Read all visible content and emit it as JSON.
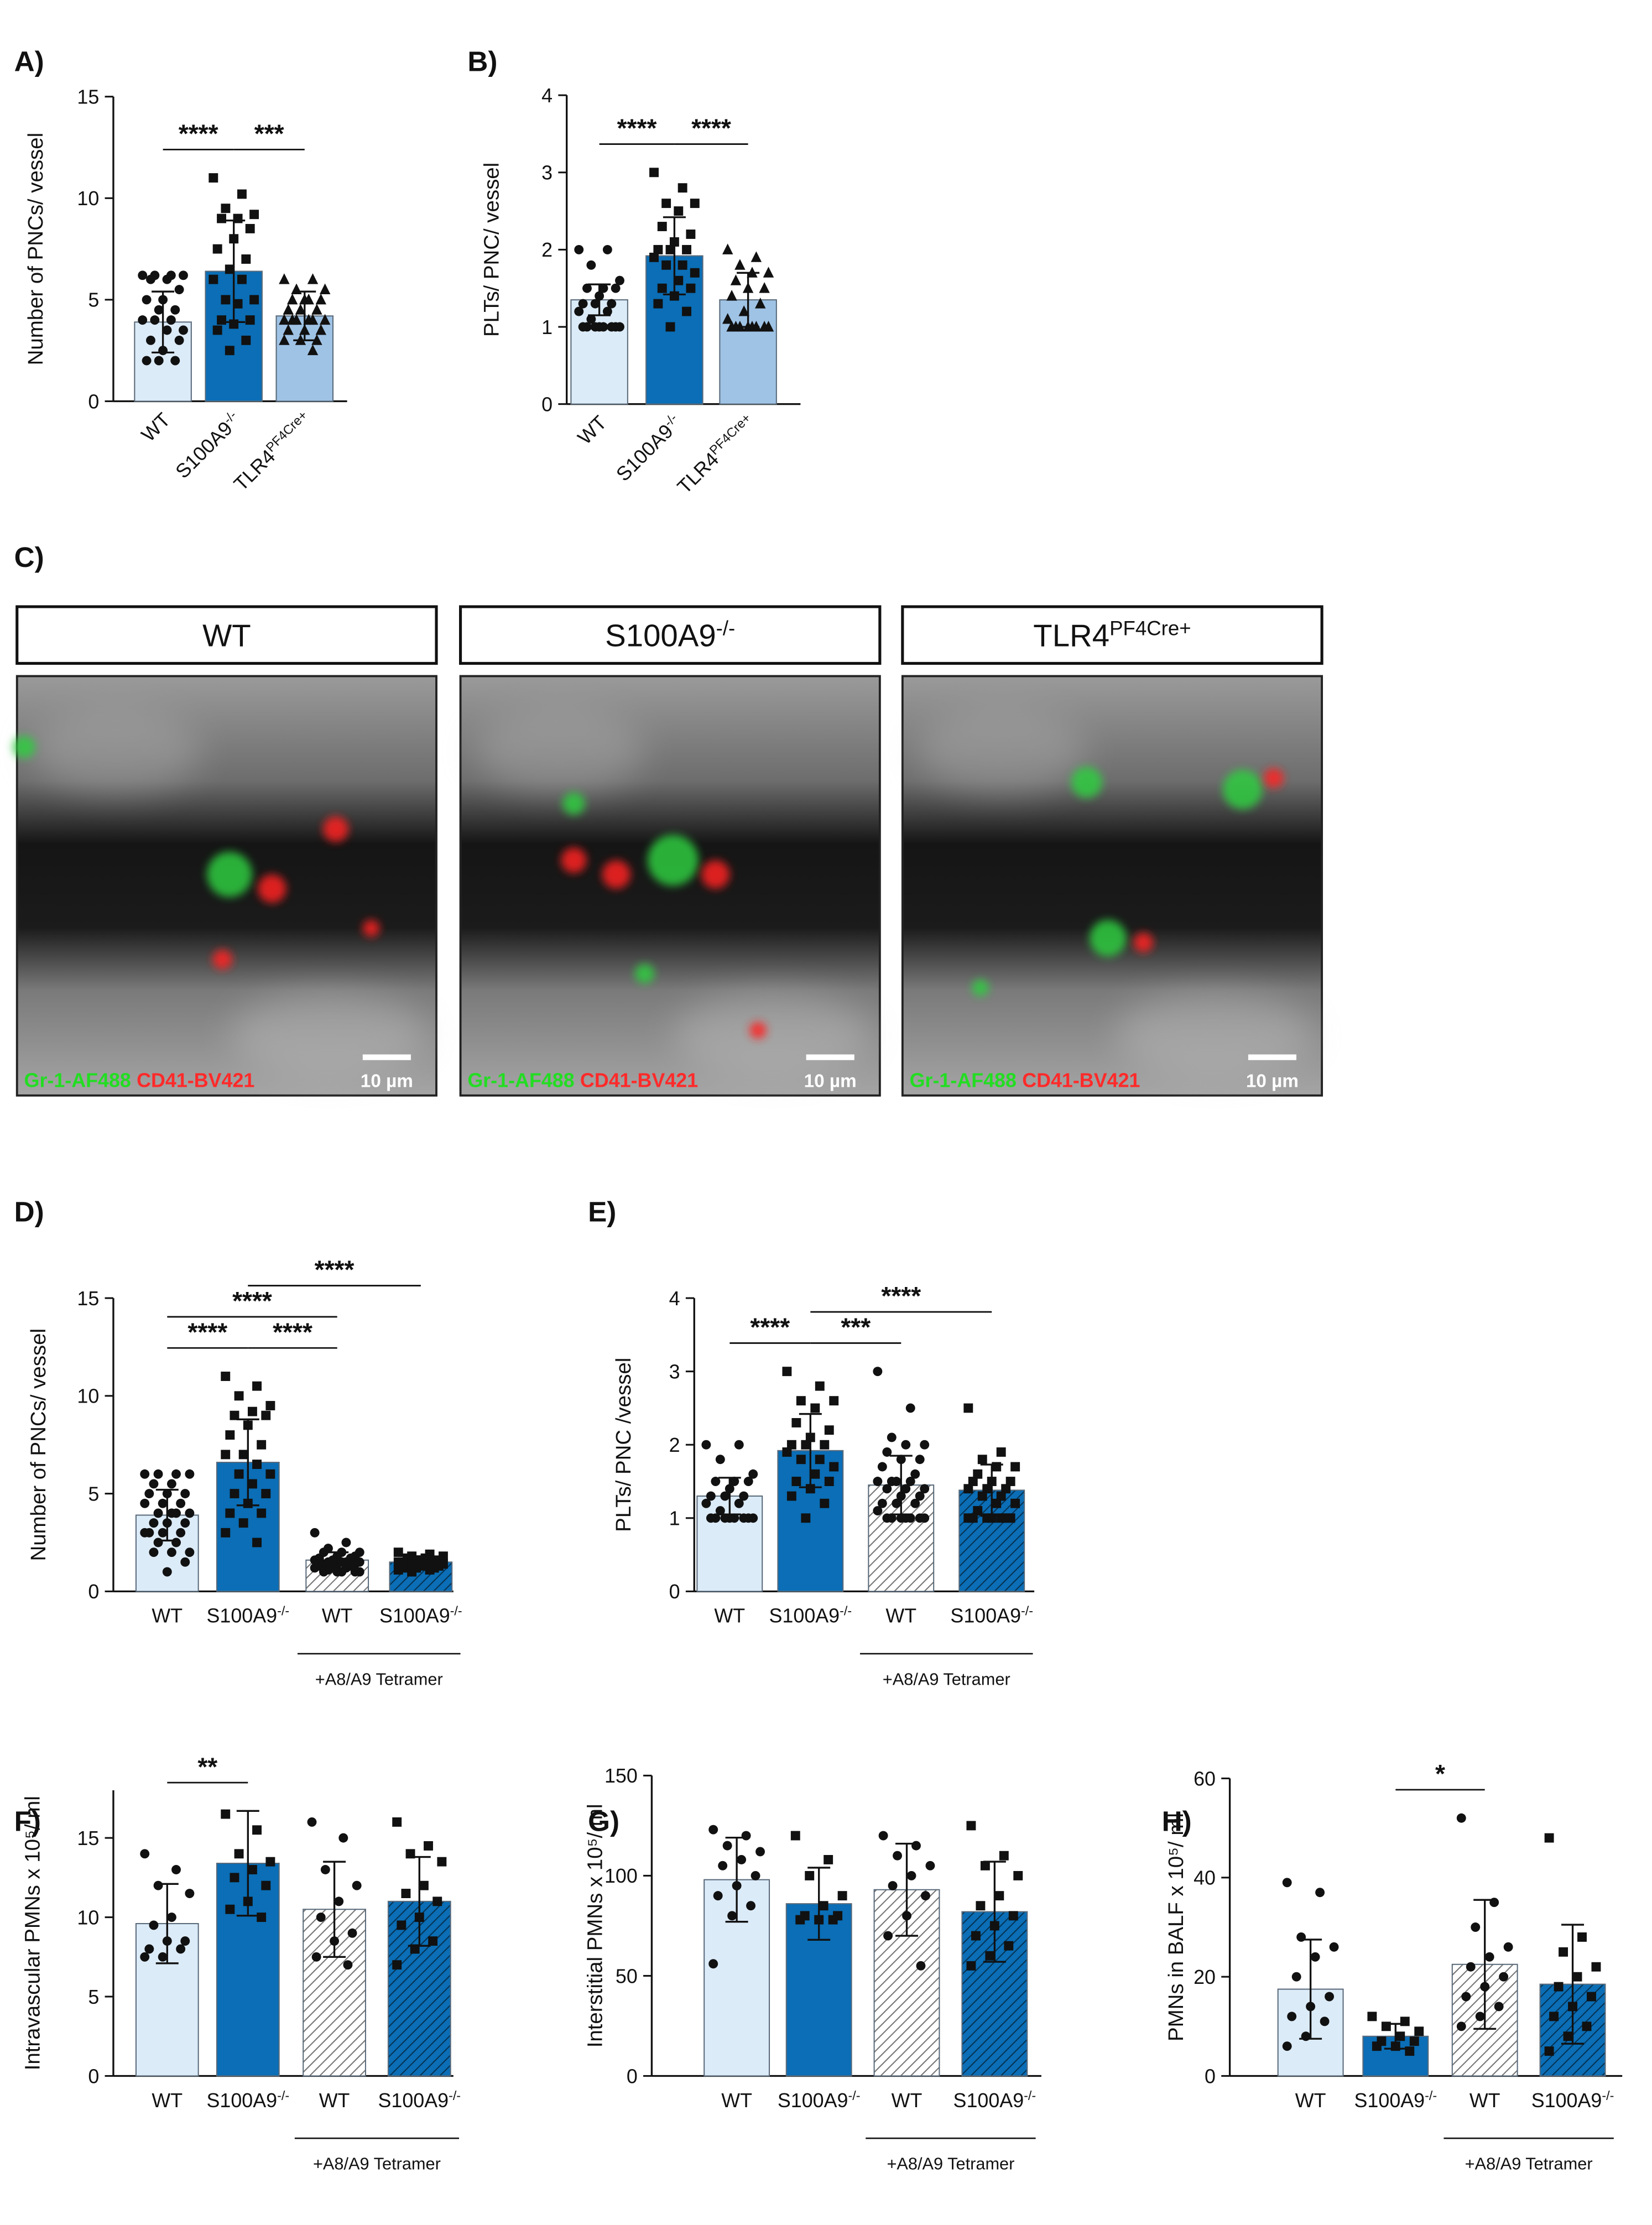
{
  "chart_data": [
    {
      "type": "bar",
      "panel": "A)",
      "ylabel": "Number of PNCs/ vessel",
      "categories": [
        "WT",
        {
          "base": "S100A9",
          "sup": "-/-"
        },
        {
          "base": "TLR4",
          "sup": "PF4Cre+"
        }
      ],
      "values": [
        3.9,
        6.4,
        4.2
      ],
      "errors": [
        1.5,
        2.5,
        1.2
      ],
      "points": [
        [
          6.2,
          6.2,
          6.2,
          6.2,
          6,
          6,
          5.5,
          5,
          5,
          4.5,
          4.5,
          4,
          4,
          4,
          3.5,
          3.5,
          3,
          3,
          2.5,
          2,
          2,
          2
        ],
        [
          11,
          10.2,
          9.5,
          9.2,
          9,
          9,
          8.5,
          8,
          7.5,
          7,
          6.5,
          6,
          6,
          5,
          5,
          4.8,
          4,
          4,
          3.8,
          3.5,
          3,
          2.5
        ],
        [
          6,
          6,
          5.5,
          5.5,
          5,
          5,
          5,
          5,
          4.5,
          4.5,
          4.5,
          4,
          4,
          4,
          4,
          4,
          4,
          3.5,
          3.5,
          3.5,
          3,
          3,
          3,
          2.5
        ]
      ],
      "colors": [
        "#dcebf8",
        "#0b6eb6",
        "#9fc3e5"
      ],
      "hatch": [
        false,
        false,
        false
      ],
      "markers": [
        "circle",
        "square",
        "triangle"
      ],
      "rotate_labels": true,
      "ylim": [
        0,
        15
      ],
      "yticks": [
        0,
        5,
        10,
        15
      ],
      "significance": [
        {
          "pair": [
            0,
            1
          ],
          "label": "****"
        },
        {
          "pair": [
            1,
            2
          ],
          "label": "***"
        }
      ]
    },
    {
      "type": "bar",
      "panel": "B)",
      "ylabel": "PLTs/ PNC/ vessel",
      "categories": [
        "WT",
        {
          "base": "S100A9",
          "sup": "-/-"
        },
        {
          "base": "TLR4",
          "sup": "PF4Cre+"
        }
      ],
      "values": [
        1.35,
        1.92,
        1.35
      ],
      "errors": [
        0.2,
        0.5,
        0.35
      ],
      "points": [
        [
          2,
          2,
          1.8,
          1.6,
          1.5,
          1.5,
          1.5,
          1.4,
          1.3,
          1.3,
          1.3,
          1.2,
          1.2,
          1.1,
          1,
          1,
          1,
          1,
          1,
          1,
          1,
          1
        ],
        [
          3,
          2.8,
          2.6,
          2.6,
          2.5,
          2.3,
          2.2,
          2.1,
          2,
          2,
          2,
          1.9,
          1.8,
          1.8,
          1.7,
          1.6,
          1.5,
          1.5,
          1.4,
          1.3,
          1.2,
          1
        ],
        [
          2,
          1.9,
          1.8,
          1.7,
          1.7,
          1.6,
          1.5,
          1.5,
          1.4,
          1.3,
          1.2,
          1.1,
          1,
          1,
          1,
          1,
          1,
          1,
          1,
          1
        ]
      ],
      "colors": [
        "#dcebf8",
        "#0b6eb6",
        "#9fc3e5"
      ],
      "hatch": [
        false,
        false,
        false
      ],
      "markers": [
        "circle",
        "square",
        "triangle"
      ],
      "rotate_labels": true,
      "ylim": [
        0,
        4
      ],
      "yticks": [
        0,
        1,
        2,
        3,
        4
      ],
      "significance": [
        {
          "pair": [
            0,
            1
          ],
          "label": "****"
        },
        {
          "pair": [
            1,
            2
          ],
          "label": "****"
        }
      ]
    },
    {
      "type": "bar",
      "panel": "D)",
      "ylabel": "Number of PNCs/ vessel",
      "categories": [
        "WT",
        {
          "base": "S100A9",
          "sup": "-/-"
        },
        "WT",
        {
          "base": "S100A9",
          "sup": "-/-"
        }
      ],
      "group_label": "+A8/A9 Tetramer",
      "values": [
        3.9,
        6.6,
        1.6,
        1.5
      ],
      "errors": [
        1.3,
        2.2,
        0.4,
        0.3
      ],
      "points": [
        [
          6,
          6,
          6,
          6,
          5.5,
          5.5,
          5,
          5,
          5,
          4.5,
          4.5,
          4.5,
          4,
          4,
          4,
          4,
          3.5,
          3.5,
          3.5,
          3,
          3,
          3,
          3,
          2.5,
          2.5,
          2,
          2,
          2,
          1.5,
          1
        ],
        [
          11,
          10.5,
          10,
          9.5,
          9.2,
          9,
          9,
          8.5,
          8,
          7.5,
          7,
          7,
          6.5,
          6,
          6,
          5.5,
          5,
          5,
          4.5,
          4,
          4,
          3.5,
          3,
          2.5
        ],
        [
          3,
          2.5,
          2.2,
          2,
          2,
          2,
          1.8,
          1.8,
          1.7,
          1.7,
          1.6,
          1.6,
          1.5,
          1.5,
          1.5,
          1.5,
          1.4,
          1.4,
          1.4,
          1.3,
          1.3,
          1.2,
          1.2,
          1.2,
          1.1,
          1,
          1,
          1,
          1,
          1
        ],
        [
          2,
          1.9,
          1.8,
          1.8,
          1.7,
          1.7,
          1.6,
          1.6,
          1.5,
          1.5,
          1.5,
          1.5,
          1.5,
          1.4,
          1.4,
          1.4,
          1.3,
          1.3,
          1.3,
          1.2,
          1.2,
          1.2,
          1.1,
          1.1,
          1
        ]
      ],
      "colors": [
        "#dcebf8",
        "#0b6eb6",
        "#ffffff",
        "#0b6eb6"
      ],
      "hatch": [
        false,
        false,
        true,
        true
      ],
      "markers": [
        "circle",
        "square",
        "circle",
        "square"
      ],
      "rotate_labels": false,
      "ylim": [
        0,
        15
      ],
      "yticks": [
        0,
        5,
        10,
        15
      ],
      "significance": [
        {
          "pair": [
            0,
            1
          ],
          "label": "****"
        },
        {
          "pair": [
            1,
            2
          ],
          "label": "****"
        },
        {
          "pair": [
            0,
            2
          ],
          "label": "****"
        },
        {
          "pair": [
            1,
            3
          ],
          "label": "****"
        }
      ]
    },
    {
      "type": "bar",
      "panel": "E)",
      "ylabel": "PLTs/ PNC /vessel",
      "categories": [
        "WT",
        {
          "base": "S100A9",
          "sup": "-/-"
        },
        "WT",
        {
          "base": "S100A9",
          "sup": "-/-"
        }
      ],
      "group_label": "+A8/A9 Tetramer",
      "values": [
        1.3,
        1.92,
        1.45,
        1.38
      ],
      "errors": [
        0.25,
        0.5,
        0.4,
        0.35
      ],
      "points": [
        [
          2,
          2,
          1.8,
          1.6,
          1.5,
          1.5,
          1.5,
          1.4,
          1.3,
          1.3,
          1.3,
          1.2,
          1.2,
          1.1,
          1,
          1,
          1,
          1,
          1,
          1,
          1,
          1
        ],
        [
          3,
          2.8,
          2.6,
          2.6,
          2.5,
          2.3,
          2.2,
          2.1,
          2,
          2,
          2,
          1.9,
          1.8,
          1.8,
          1.7,
          1.6,
          1.5,
          1.5,
          1.4,
          1.3,
          1.2,
          1
        ],
        [
          3,
          2.5,
          2.1,
          2,
          2,
          1.9,
          1.8,
          1.8,
          1.7,
          1.6,
          1.5,
          1.5,
          1.5,
          1.5,
          1.4,
          1.4,
          1.4,
          1.3,
          1.3,
          1.2,
          1.2,
          1.2,
          1.1,
          1,
          1,
          1,
          1,
          1,
          1,
          1
        ],
        [
          2.5,
          1.9,
          1.8,
          1.7,
          1.7,
          1.6,
          1.5,
          1.5,
          1.5,
          1.4,
          1.4,
          1.4,
          1.3,
          1.3,
          1.2,
          1.2,
          1.1,
          1,
          1,
          1,
          1,
          1,
          1,
          1
        ]
      ],
      "colors": [
        "#dcebf8",
        "#0b6eb6",
        "#ffffff",
        "#0b6eb6"
      ],
      "hatch": [
        false,
        false,
        true,
        true
      ],
      "markers": [
        "circle",
        "square",
        "circle",
        "square"
      ],
      "rotate_labels": false,
      "ylim": [
        0,
        4
      ],
      "yticks": [
        0,
        1,
        2,
        3,
        4
      ],
      "significance": [
        {
          "pair": [
            0,
            1
          ],
          "label": "****"
        },
        {
          "pair": [
            1,
            2
          ],
          "label": "***"
        },
        {
          "pair": [
            1,
            3
          ],
          "label": "****"
        }
      ]
    },
    {
      "type": "bar",
      "panel": "F)",
      "ylabel": "Intravascular PMNs x 10⁵/ ml",
      "categories": [
        "WT",
        {
          "base": "S100A9",
          "sup": "-/-"
        },
        "WT",
        {
          "base": "S100A9",
          "sup": "-/-"
        }
      ],
      "group_label": "+A8/A9 Tetramer",
      "values": [
        9.6,
        13.4,
        10.5,
        11
      ],
      "errors": [
        2.5,
        3.3,
        3,
        2.8
      ],
      "points": [
        [
          14,
          13,
          12,
          11.5,
          10,
          9.5,
          8.5,
          8.5,
          8,
          8,
          7.5,
          7.5
        ],
        [
          16.5,
          15.5,
          14,
          13.5,
          13,
          12.5,
          12,
          11,
          10.5,
          10
        ],
        [
          16,
          15,
          13,
          12,
          11,
          10,
          9,
          8.5,
          7.5,
          7
        ],
        [
          16,
          14.5,
          14,
          13.5,
          12,
          11.5,
          11,
          10,
          9.5,
          8.5,
          8,
          7
        ]
      ],
      "colors": [
        "#dcebf8",
        "#0b6eb6",
        "#ffffff",
        "#0b6eb6"
      ],
      "hatch": [
        false,
        false,
        true,
        true
      ],
      "markers": [
        "circle",
        "square",
        "circle",
        "square"
      ],
      "rotate_labels": false,
      "ylim": [
        0,
        18
      ],
      "yticks": [
        0,
        5,
        10,
        15
      ],
      "significance": [
        {
          "pair": [
            0,
            1
          ],
          "label": "**"
        }
      ]
    },
    {
      "type": "bar",
      "panel": "G)",
      "ylabel": "Interstitial PMNs x 10⁵/ ml",
      "categories": [
        "WT",
        {
          "base": "S100A9",
          "sup": "-/-"
        },
        "WT",
        {
          "base": "S100A9",
          "sup": "-/-"
        }
      ],
      "group_label": "+A8/A9 Tetramer",
      "values": [
        98,
        86,
        93,
        82
      ],
      "errors": [
        21,
        18,
        23,
        25
      ],
      "points": [
        [
          123,
          120,
          115,
          112,
          108,
          105,
          100,
          95,
          90,
          85,
          80,
          56
        ],
        [
          120,
          108,
          100,
          90,
          85,
          80,
          80,
          78,
          78,
          78
        ],
        [
          120,
          115,
          110,
          105,
          100,
          95,
          90,
          80,
          70,
          55
        ],
        [
          125,
          110,
          105,
          100,
          90,
          85,
          80,
          75,
          70,
          65,
          60,
          55
        ]
      ],
      "colors": [
        "#dcebf8",
        "#0b6eb6",
        "#ffffff",
        "#0b6eb6"
      ],
      "hatch": [
        false,
        false,
        true,
        true
      ],
      "markers": [
        "circle",
        "square",
        "circle",
        "square"
      ],
      "rotate_labels": false,
      "ylim": [
        0,
        150
      ],
      "yticks": [
        0,
        50,
        100,
        150
      ],
      "significance": []
    },
    {
      "type": "bar",
      "panel": "H)",
      "ylabel": "PMNs in BALF x 10⁵/ ml",
      "categories": [
        "WT",
        {
          "base": "S100A9",
          "sup": "-/-"
        },
        "WT",
        {
          "base": "S100A9",
          "sup": "-/-"
        }
      ],
      "group_label": "+A8/A9 Tetramer",
      "values": [
        17.5,
        8,
        22.5,
        18.5
      ],
      "errors": [
        10,
        2.5,
        13,
        12
      ],
      "points": [
        [
          39,
          37,
          28,
          26,
          24,
          20,
          16,
          14,
          12,
          11,
          8,
          6
        ],
        [
          12,
          11,
          10,
          9,
          8,
          7,
          7,
          6,
          6,
          5
        ],
        [
          52,
          35,
          30,
          26,
          24,
          22,
          20,
          18,
          16,
          14,
          12,
          10
        ],
        [
          48,
          28,
          25,
          22,
          20,
          18,
          16,
          14,
          12,
          10,
          8,
          5
        ]
      ],
      "colors": [
        "#dcebf8",
        "#0b6eb6",
        "#ffffff",
        "#0b6eb6"
      ],
      "hatch": [
        false,
        false,
        true,
        true
      ],
      "markers": [
        "circle",
        "square",
        "circle",
        "square"
      ],
      "rotate_labels": false,
      "ylim": [
        0,
        60
      ],
      "yticks": [
        0,
        20,
        40,
        60
      ],
      "significance": [
        {
          "pair": [
            1,
            2
          ],
          "label": "*"
        }
      ]
    }
  ],
  "panel_c": {
    "label": "C)",
    "images": [
      {
        "title": {
          "base": "WT"
        }
      },
      {
        "title": {
          "base": "S100A9",
          "sup": "-/-"
        }
      },
      {
        "title": {
          "base": "TLR4",
          "sup": "PF4Cre+"
        }
      }
    ],
    "stain_green": "Gr-1-AF488",
    "stain_red": "CD41-BV421",
    "scale_bar": "10 µm"
  }
}
